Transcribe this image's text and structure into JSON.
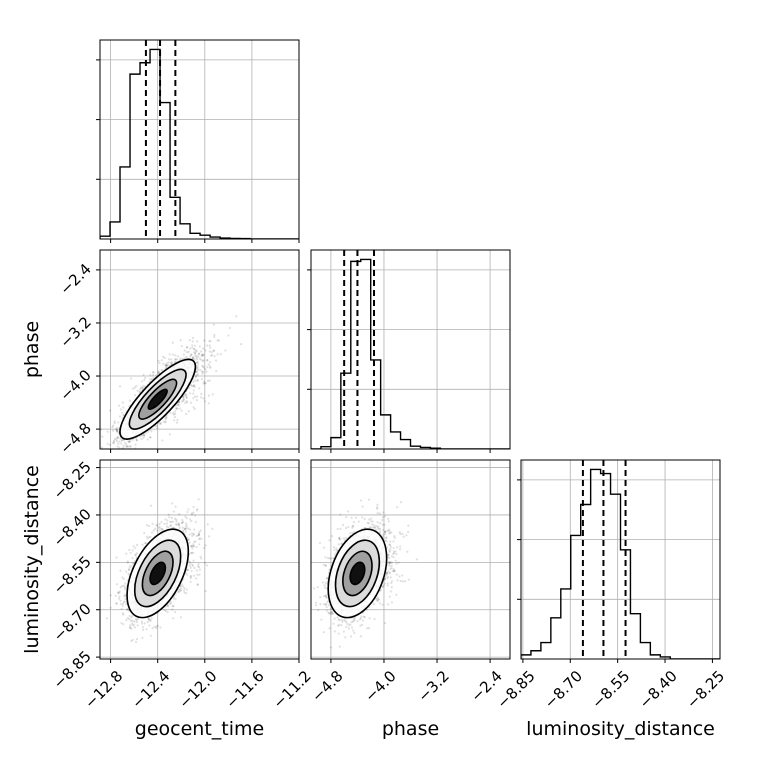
{
  "chart_data": {
    "type": "corner",
    "parameters": [
      "geocent_time",
      "phase",
      "luminosity_distance"
    ],
    "grid": true,
    "ranges": {
      "geocent_time": [
        -12.89,
        -11.2
      ],
      "phase": [
        -5.1,
        -2.1
      ],
      "luminosity_distance": [
        -8.856,
        -8.226
      ]
    },
    "ticks": {
      "geocent_time": {
        "values": [
          -12.8,
          -12.4,
          -12.0,
          -11.6,
          -11.2
        ],
        "labels": [
          "−12.8",
          "−12.4",
          "−12.0",
          "−11.6",
          "−11.2"
        ]
      },
      "phase": {
        "values": [
          -4.8,
          -4.0,
          -3.2,
          -2.4
        ],
        "labels": [
          "−4.8",
          "−4.0",
          "−3.2",
          "−2.4"
        ]
      },
      "luminosity_distance": {
        "values": [
          -8.85,
          -8.7,
          -8.55,
          -8.4,
          -8.25
        ],
        "labels": [
          "−8.85",
          "−8.70",
          "−8.55",
          "−8.40",
          "−8.25"
        ]
      }
    },
    "quantiles": {
      "geocent_time": [
        -12.5,
        -12.38,
        -12.25
      ],
      "phase": [
        -4.6,
        -4.4,
        -4.15
      ],
      "luminosity_distance": [
        -8.66,
        -8.595,
        -8.525
      ]
    },
    "histograms": {
      "geocent_time": {
        "bin_edges": [
          -12.89,
          -12.805,
          -12.72,
          -12.635,
          -12.55,
          -12.465,
          -12.38,
          -12.295,
          -12.21,
          -12.125,
          -12.04,
          -11.955,
          -11.87,
          -11.785,
          -11.7,
          -11.615,
          -11.53,
          -11.445,
          -11.36,
          -11.275,
          -11.2
        ],
        "counts": [
          0.015,
          0.09,
          0.38,
          0.87,
          0.93,
          1.0,
          0.72,
          0.22,
          0.08,
          0.03,
          0.02,
          0.01,
          0.005,
          0.003,
          0.002,
          0.0,
          0.0,
          0.0,
          0.0,
          0.0
        ]
      },
      "phase": {
        "bin_edges": [
          -5.1,
          -4.95,
          -4.8,
          -4.65,
          -4.5,
          -4.35,
          -4.2,
          -4.05,
          -3.9,
          -3.75,
          -3.6,
          -3.45,
          -3.3,
          -3.15,
          -3.0,
          -2.85,
          -2.7,
          -2.55,
          -2.4,
          -2.25,
          -2.1
        ],
        "counts": [
          0.0,
          0.012,
          0.06,
          0.4,
          0.99,
          1.0,
          0.47,
          0.18,
          0.09,
          0.05,
          0.015,
          0.008,
          0.004,
          0.0,
          0.0,
          0.0,
          0.0,
          0.0,
          0.0,
          0.0
        ]
      },
      "luminosity_distance": {
        "bin_edges": [
          -8.856,
          -8.8245,
          -8.793,
          -8.7615,
          -8.73,
          -8.6985,
          -8.667,
          -8.6355,
          -8.604,
          -8.5725,
          -8.541,
          -8.5095,
          -8.478,
          -8.4465,
          -8.415,
          -8.3835,
          -8.352,
          -8.3205,
          -8.289,
          -8.2575,
          -8.226
        ],
        "counts": [
          0.02,
          0.04,
          0.08,
          0.2,
          0.34,
          0.6,
          0.75,
          0.92,
          0.9,
          0.8,
          0.53,
          0.22,
          0.08,
          0.02,
          0.01,
          0.0,
          0.0,
          0.0,
          0.0,
          0.0
        ]
      }
    },
    "pair_distributions": [
      {
        "x": "geocent_time",
        "y": "phase",
        "mean": [
          -12.4,
          -4.35
        ],
        "sd": [
          0.16,
          0.3
        ],
        "correlation": 0.82
      },
      {
        "x": "geocent_time",
        "y": "luminosity_distance",
        "mean": [
          -12.4,
          -8.585
        ],
        "sd": [
          0.13,
          0.07
        ],
        "correlation": 0.5
      },
      {
        "x": "phase",
        "y": "luminosity_distance",
        "mean": [
          -4.4,
          -8.585
        ],
        "sd": [
          0.22,
          0.07
        ],
        "correlation": 0.35
      }
    ],
    "contour_levels_sigma": [
      0.5,
      1.0,
      1.5,
      2.0
    ]
  }
}
